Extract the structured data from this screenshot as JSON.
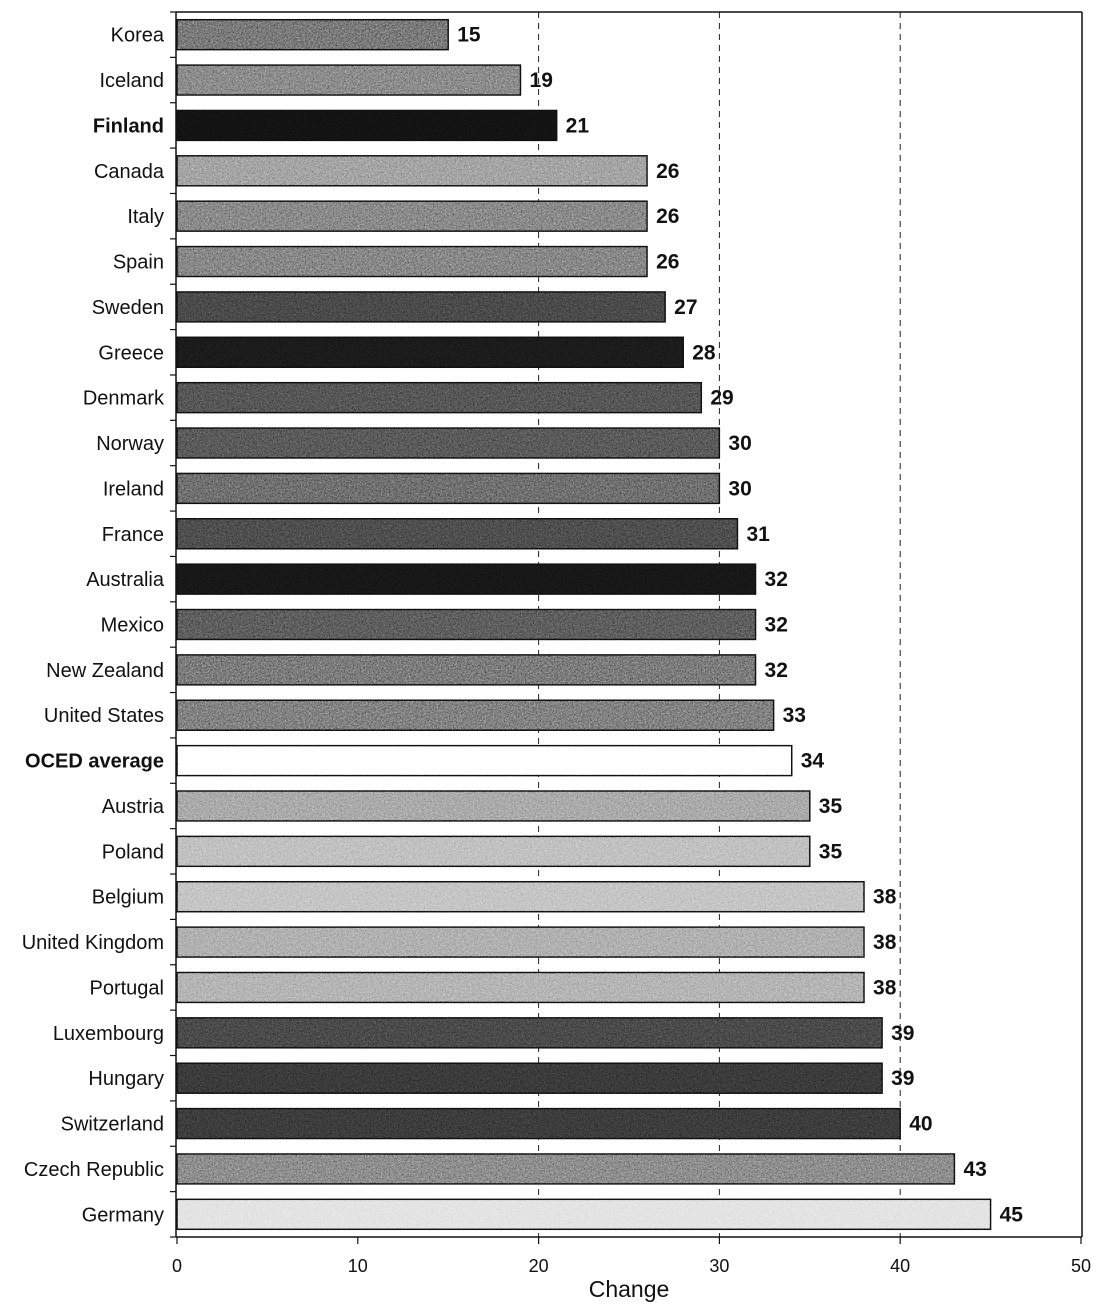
{
  "chart_data": {
    "type": "bar",
    "orientation": "horizontal",
    "categories": [
      "Korea",
      "Iceland",
      "Finland",
      "Canada",
      "Italy",
      "Spain",
      "Sweden",
      "Greece",
      "Denmark",
      "Norway",
      "Ireland",
      "France",
      "Australia",
      "Mexico",
      "New Zealand",
      "United States",
      "OCED average",
      "Austria",
      "Poland",
      "Belgium",
      "United Kingdom",
      "Portugal",
      "Luxembourg",
      "Hungary",
      "Switzerland",
      "Czech Republic",
      "Germany"
    ],
    "values": [
      15,
      19,
      21,
      26,
      26,
      26,
      27,
      28,
      29,
      30,
      30,
      31,
      32,
      32,
      32,
      33,
      34,
      35,
      35,
      38,
      38,
      38,
      39,
      39,
      40,
      43,
      45
    ],
    "bold_labels": [
      false,
      false,
      true,
      false,
      false,
      false,
      false,
      false,
      false,
      false,
      false,
      false,
      false,
      false,
      false,
      false,
      true,
      false,
      false,
      false,
      false,
      false,
      false,
      false,
      false,
      false,
      false
    ],
    "bar_colors": [
      "#7c7c7c",
      "#8e8e8e",
      "#141414",
      "#a6a6a6",
      "#8c8c8c",
      "#8a8a8a",
      "#4c4c4c",
      "#1c1c1c",
      "#585858",
      "#5c5c5c",
      "#727272",
      "#505050",
      "#181818",
      "#606060",
      "#7e7e7e",
      "#848484",
      "#ffffff",
      "#acacac",
      "#c2c2c2",
      "#c6c6c6",
      "#b2b2b2",
      "#b6b6b6",
      "#4c4c4c",
      "#3c3c3c",
      "#3e3e3e",
      "#909090",
      "#e4e4e4"
    ],
    "xlabel": "Change",
    "xlim": [
      0,
      50
    ],
    "xticks": [
      0,
      10,
      20,
      30,
      40,
      50
    ],
    "gridlines_x": [
      20,
      30,
      40
    ],
    "grid": true,
    "data_labels": true
  }
}
